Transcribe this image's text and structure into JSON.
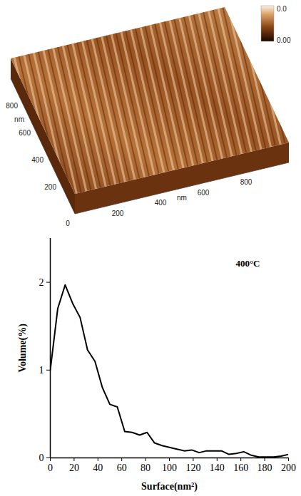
{
  "chart_data": [
    {
      "type": "surface",
      "xlabel": "nm",
      "ylabel": "nm",
      "xlim": [
        0,
        1000
      ],
      "ylim": [
        0,
        1000
      ],
      "xticks": [
        0,
        200,
        400,
        600,
        800
      ],
      "yticks": [
        200,
        400,
        600,
        800
      ],
      "colorbar_labels": [
        "0.0",
        "0.00"
      ]
    },
    {
      "type": "line",
      "xlabel": "Surface(nm²)",
      "ylabel": "Volume(%)",
      "annotation": "400°C",
      "color": "#000000",
      "xlim": [
        0,
        200
      ],
      "ylim": [
        0,
        2.5
      ],
      "xticks": [
        0,
        20,
        40,
        60,
        80,
        100,
        120,
        140,
        160,
        180,
        200
      ],
      "yticks": [
        0,
        1,
        2
      ],
      "x": [
        0,
        6.25,
        12.5,
        18.75,
        25,
        31.25,
        37.5,
        43.75,
        50,
        56.25,
        62.5,
        68.75,
        75,
        81.25,
        87.5,
        93.75,
        100,
        106.25,
        112.5,
        118.75,
        125,
        131.25,
        137.5,
        143.75,
        150,
        156.25,
        162.5,
        168.75,
        175,
        181.25,
        187.5,
        193.75,
        200
      ],
      "values": [
        1.0,
        1.7,
        1.97,
        1.76,
        1.6,
        1.23,
        1.1,
        0.8,
        0.61,
        0.58,
        0.3,
        0.29,
        0.26,
        0.29,
        0.17,
        0.14,
        0.12,
        0.1,
        0.08,
        0.09,
        0.06,
        0.08,
        0.08,
        0.08,
        0.04,
        0.05,
        0.07,
        0.03,
        0.01,
        0.01,
        0.01,
        0.02,
        0.04
      ]
    }
  ]
}
